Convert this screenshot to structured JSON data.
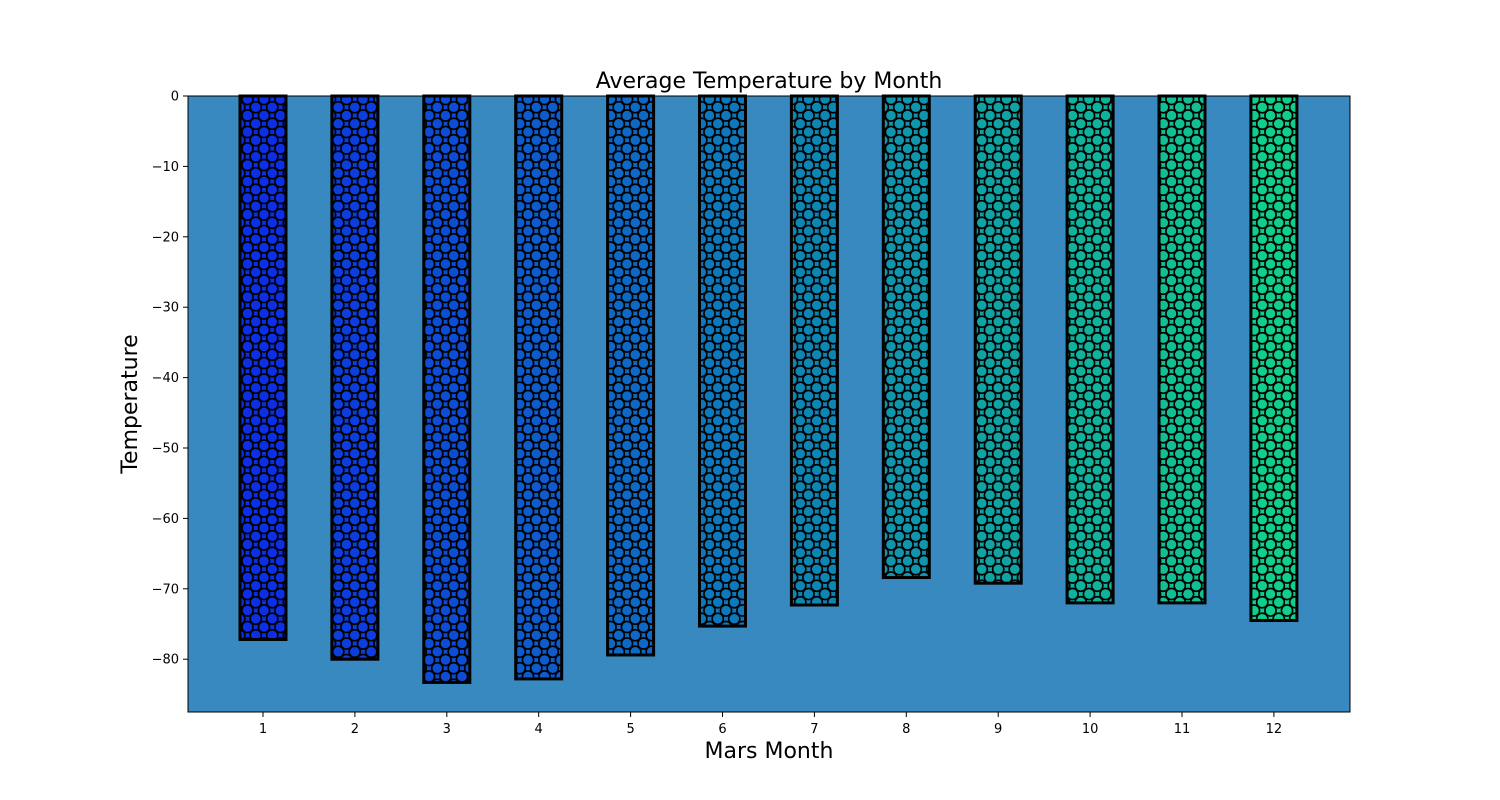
{
  "chart_data": {
    "type": "bar",
    "title": "Average Temperature by Month",
    "xlabel": "Mars Month",
    "ylabel": "Temperature",
    "categories": [
      "1",
      "2",
      "3",
      "4",
      "5",
      "6",
      "7",
      "8",
      "9",
      "10",
      "11",
      "12"
    ],
    "values": [
      -77.2,
      -80.0,
      -83.3,
      -82.8,
      -79.4,
      -75.3,
      -72.3,
      -68.4,
      -69.2,
      -72.0,
      -72.0,
      -74.5
    ],
    "yticks": [
      0,
      -10,
      -20,
      -30,
      -40,
      -50,
      -60,
      -70,
      -80
    ],
    "ylim": [
      -87.5,
      0
    ],
    "grid": false,
    "legend": "none",
    "colors": {
      "plot_background": "#3889c0",
      "bar_start": "#0c2fe6",
      "bar_end": "#10cf8b",
      "bar_edge": "#000000",
      "hatch": "circles"
    }
  }
}
